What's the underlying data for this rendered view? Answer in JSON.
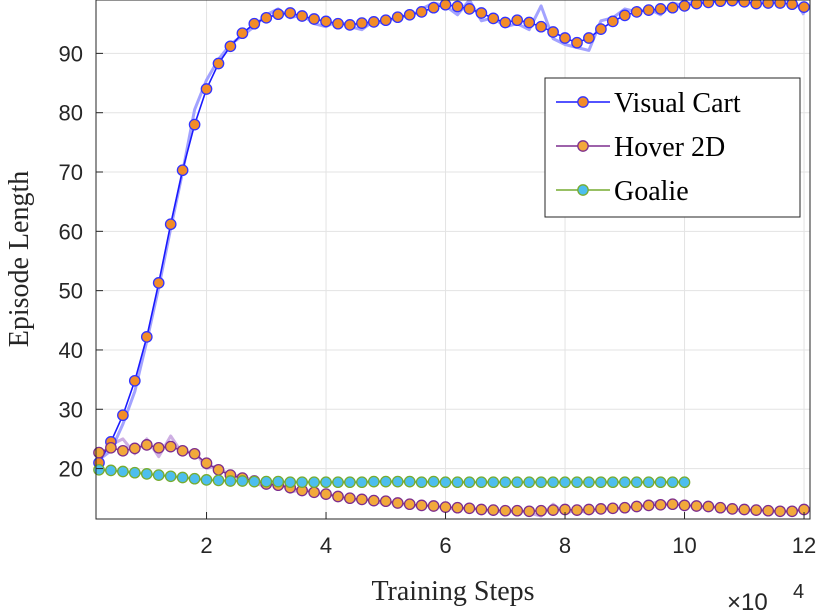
{
  "chart_data": {
    "type": "line",
    "title": "",
    "xlabel": "Training Steps",
    "ylabel": "Episode Length",
    "x_multiplier_label": "×10",
    "x_multiplier_exponent": "4",
    "xlim": [
      0.15,
      12.1
    ],
    "ylim": [
      11.5,
      99
    ],
    "xticks": [
      2,
      4,
      6,
      8,
      10,
      12
    ],
    "yticks": [
      20,
      30,
      40,
      50,
      60,
      70,
      80,
      90
    ],
    "grid": true,
    "legend_position": "top-right",
    "series": [
      {
        "name": "Visual Cart",
        "line_color": "#1a1aff",
        "raw_color": "#9999ff",
        "marker_fill": "#f28c28",
        "marker_edge": "#3333ff",
        "x": [
          0.2,
          0.4,
          0.6,
          0.8,
          1.0,
          1.2,
          1.4,
          1.6,
          1.8,
          2.0,
          2.2,
          2.4,
          2.6,
          2.8,
          3.0,
          3.2,
          3.4,
          3.6,
          3.8,
          4.0,
          4.2,
          4.4,
          4.6,
          4.8,
          5.0,
          5.2,
          5.4,
          5.6,
          5.8,
          6.0,
          6.2,
          6.4,
          6.6,
          6.8,
          7.0,
          7.2,
          7.4,
          7.6,
          7.8,
          8.0,
          8.2,
          8.4,
          8.6,
          8.8,
          9.0,
          9.2,
          9.4,
          9.6,
          9.8,
          10.0,
          10.2,
          10.4,
          10.6,
          10.8,
          11.0,
          11.2,
          11.4,
          11.6,
          11.8,
          12.0
        ],
        "values": [
          21.0,
          24.5,
          29.0,
          34.8,
          42.2,
          51.3,
          61.2,
          70.3,
          78.0,
          84.0,
          88.3,
          91.2,
          93.4,
          95.0,
          96.0,
          96.6,
          96.8,
          96.3,
          95.8,
          95.4,
          95.0,
          94.8,
          95.1,
          95.3,
          95.6,
          96.1,
          96.5,
          97.0,
          97.7,
          98.2,
          97.9,
          97.5,
          96.8,
          95.9,
          95.2,
          95.6,
          95.2,
          94.5,
          93.6,
          92.6,
          91.8,
          92.6,
          94.1,
          95.4,
          96.4,
          97.0,
          97.3,
          97.5,
          97.7,
          98.0,
          98.4,
          98.6,
          98.8,
          98.9,
          98.7,
          98.4,
          98.5,
          98.5,
          98.3,
          97.8
        ],
        "raw": [
          21.5,
          23.0,
          27.5,
          33.0,
          41.5,
          50.5,
          60.5,
          70.0,
          80.5,
          85.5,
          89.0,
          91.5,
          93.0,
          94.5,
          96.5,
          97.5,
          96.0,
          96.5,
          95.0,
          94.5,
          95.5,
          94.5,
          94.0,
          95.5,
          95.0,
          96.5,
          96.0,
          97.5,
          98.5,
          98.0,
          96.5,
          99.0,
          95.5,
          96.0,
          94.5,
          95.0,
          94.0,
          98.0,
          92.5,
          91.5,
          91.0,
          90.5,
          95.5,
          96.0,
          97.5,
          97.0,
          97.5,
          96.5,
          98.5,
          98.0,
          99.0,
          98.5,
          99.5,
          98.5,
          99.0,
          98.0,
          99.0,
          98.5,
          99.5,
          96.5
        ]
      },
      {
        "name": "Hover 2D",
        "line_color": "#7d2e8e",
        "raw_color": "#c9a6e0",
        "marker_fill": "#f2a93b",
        "marker_edge": "#7d2e8e",
        "x": [
          0.2,
          0.4,
          0.6,
          0.8,
          1.0,
          1.2,
          1.4,
          1.6,
          1.8,
          2.0,
          2.2,
          2.4,
          2.6,
          2.8,
          3.0,
          3.2,
          3.4,
          3.6,
          3.8,
          4.0,
          4.2,
          4.4,
          4.6,
          4.8,
          5.0,
          5.2,
          5.4,
          5.6,
          5.8,
          6.0,
          6.2,
          6.4,
          6.6,
          6.8,
          7.0,
          7.2,
          7.4,
          7.6,
          7.8,
          8.0,
          8.2,
          8.4,
          8.6,
          8.8,
          9.0,
          9.2,
          9.4,
          9.6,
          9.8,
          10.0,
          10.2,
          10.4,
          10.6,
          10.8,
          11.0,
          11.2,
          11.4,
          11.6,
          11.8,
          12.0
        ],
        "values": [
          22.7,
          23.5,
          23.0,
          23.4,
          24.0,
          23.5,
          23.7,
          23.0,
          22.5,
          20.9,
          19.8,
          18.9,
          18.4,
          17.9,
          17.4,
          17.2,
          16.8,
          16.3,
          16.0,
          15.7,
          15.3,
          15.0,
          14.8,
          14.6,
          14.5,
          14.2,
          14.0,
          13.8,
          13.7,
          13.5,
          13.4,
          13.3,
          13.1,
          13.0,
          12.9,
          12.9,
          12.8,
          12.9,
          13.0,
          13.1,
          13.0,
          13.1,
          13.2,
          13.3,
          13.4,
          13.6,
          13.8,
          13.9,
          14.0,
          13.8,
          13.7,
          13.6,
          13.4,
          13.2,
          13.1,
          13.0,
          12.9,
          12.8,
          12.8,
          13.1
        ],
        "raw": [
          22.0,
          24.0,
          25.0,
          22.5,
          25.0,
          22.0,
          25.5,
          22.5,
          23.0,
          20.0,
          20.5,
          18.5,
          19.0,
          17.5,
          17.0,
          18.0,
          16.0,
          16.5,
          16.0,
          15.5,
          15.5,
          14.5,
          15.0,
          14.5,
          14.0,
          14.5,
          13.5,
          14.0,
          13.5,
          13.5,
          13.0,
          13.5,
          13.0,
          13.0,
          12.5,
          13.0,
          12.5,
          12.0,
          14.0,
          12.5,
          13.0,
          12.5,
          13.5,
          13.0,
          13.5,
          13.5,
          14.0,
          14.5,
          13.5,
          14.5,
          13.0,
          14.0,
          13.0,
          13.5,
          12.5,
          13.5,
          12.5,
          13.0,
          12.5,
          13.5
        ]
      },
      {
        "name": "Goalie",
        "line_color": "#77ac30",
        "raw_color": "#c3dd9a",
        "marker_fill": "#4dbeee",
        "marker_edge": "#77ac30",
        "x": [
          0.2,
          0.4,
          0.6,
          0.8,
          1.0,
          1.2,
          1.4,
          1.6,
          1.8,
          2.0,
          2.2,
          2.4,
          2.6,
          2.8,
          3.0,
          3.2,
          3.4,
          3.6,
          3.8,
          4.0,
          4.2,
          4.4,
          4.6,
          4.8,
          5.0,
          5.2,
          5.4,
          5.6,
          5.8,
          6.0,
          6.2,
          6.4,
          6.6,
          6.8,
          7.0,
          7.2,
          7.4,
          7.6,
          7.8,
          8.0,
          8.2,
          8.4,
          8.6,
          8.8,
          9.0,
          9.2,
          9.4,
          9.6,
          9.8,
          10.0
        ],
        "values": [
          19.8,
          19.7,
          19.5,
          19.3,
          19.1,
          18.9,
          18.7,
          18.5,
          18.3,
          18.1,
          18.0,
          17.9,
          17.9,
          17.8,
          17.8,
          17.8,
          17.7,
          17.7,
          17.7,
          17.7,
          17.7,
          17.7,
          17.7,
          17.8,
          17.8,
          17.8,
          17.8,
          17.7,
          17.8,
          17.7,
          17.7,
          17.7,
          17.7,
          17.7,
          17.7,
          17.7,
          17.7,
          17.7,
          17.7,
          17.7,
          17.7,
          17.7,
          17.7,
          17.7,
          17.7,
          17.7,
          17.7,
          17.7,
          17.7,
          17.7
        ],
        "raw": [
          19.9,
          19.6,
          19.6,
          19.2,
          19.2,
          18.8,
          18.8,
          18.4,
          18.4,
          18.0,
          18.1,
          17.8,
          18.0,
          17.7,
          17.9,
          17.7,
          17.8,
          17.6,
          17.8,
          17.6,
          17.8,
          17.6,
          17.8,
          17.7,
          17.9,
          17.7,
          17.9,
          17.6,
          17.9,
          17.6,
          17.8,
          17.6,
          17.8,
          17.6,
          17.8,
          17.6,
          17.8,
          17.6,
          17.8,
          17.6,
          17.8,
          17.6,
          17.8,
          17.6,
          17.8,
          17.6,
          17.8,
          17.6,
          17.8,
          17.7
        ]
      }
    ]
  }
}
